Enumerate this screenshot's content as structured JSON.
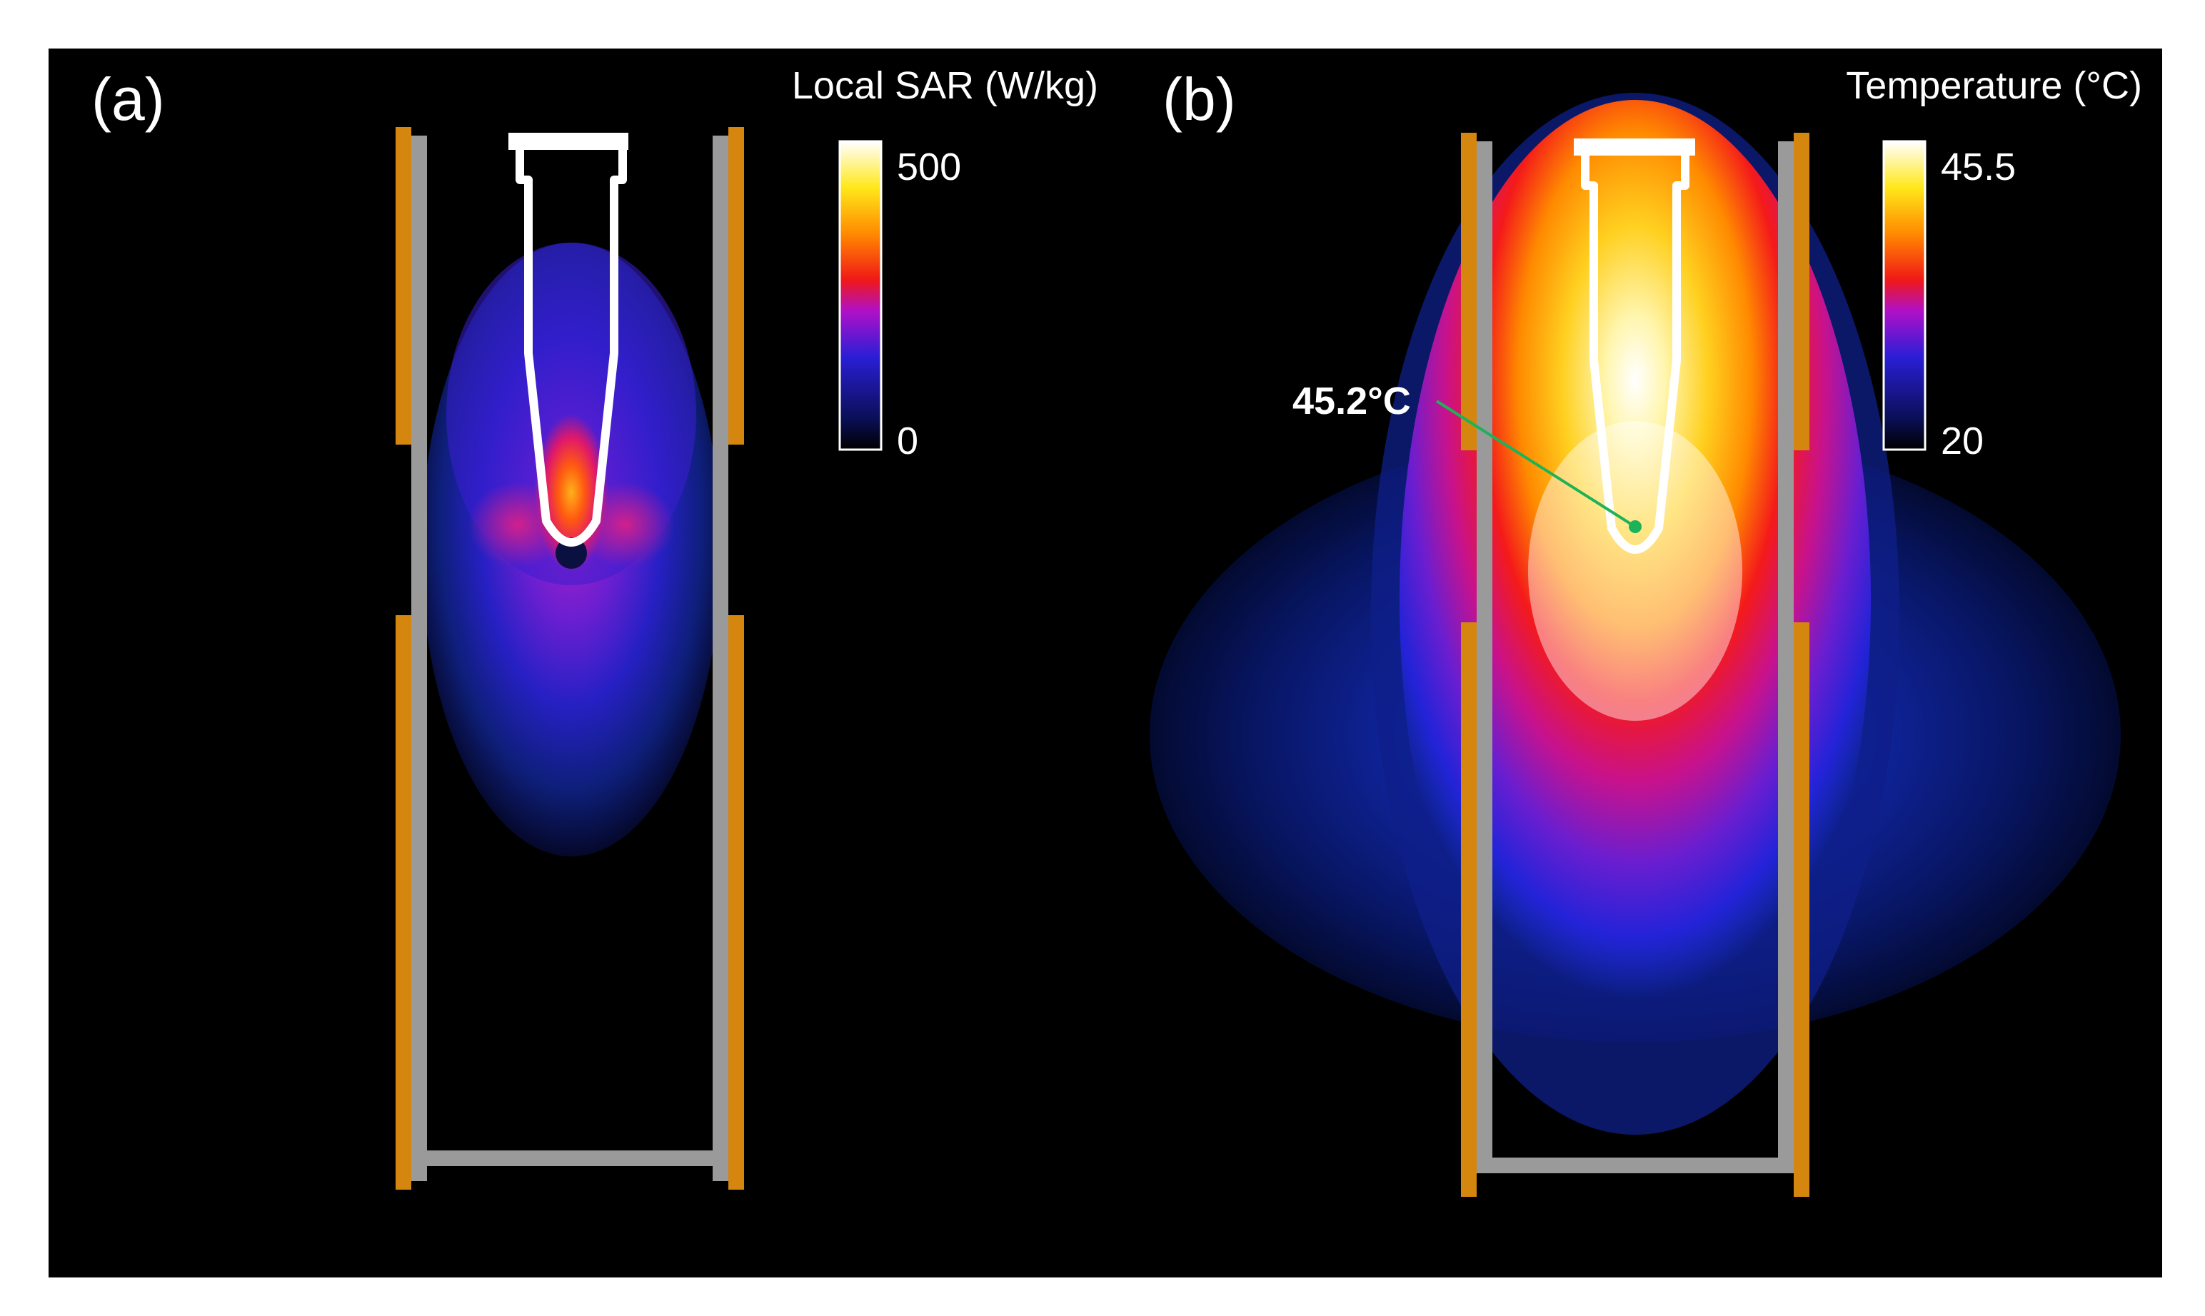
{
  "panels": [
    {
      "id": "a",
      "label": "(a)",
      "colorbar": {
        "title": "Local SAR (W/kg)",
        "max_label": "500",
        "min_label": "0"
      }
    },
    {
      "id": "b",
      "label": "(b)",
      "colorbar": {
        "title": "Temperature (°C)",
        "max_label": "45.5",
        "min_label": "20"
      },
      "annotation": "45.2°C"
    }
  ],
  "colors": {
    "background": "#000000",
    "electrode": "#d4860f",
    "wall": "#9a9a9a",
    "tube": "#ffffff",
    "marker": "#1bb35a"
  }
}
